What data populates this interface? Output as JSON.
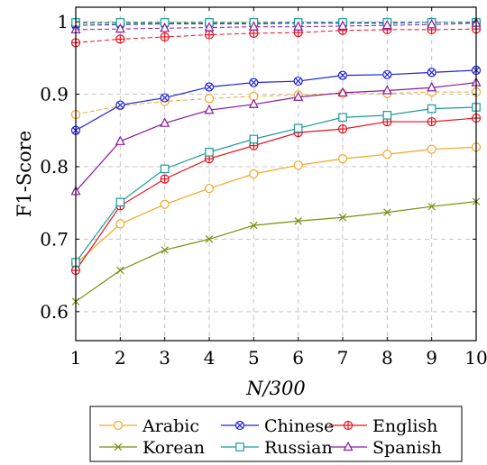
{
  "chart_data": {
    "type": "line",
    "title": "",
    "xlabel": "N/300",
    "ylabel": "F1-Score",
    "x": [
      1,
      2,
      3,
      4,
      5,
      6,
      7,
      8,
      9,
      10
    ],
    "x_ticks": [
      "1",
      "2",
      "3",
      "4",
      "5",
      "6",
      "7",
      "8",
      "9",
      "10"
    ],
    "y_ticks": [
      {
        "value": 0.6,
        "label": "0.6"
      },
      {
        "value": 0.7,
        "label": "0.7"
      },
      {
        "value": 0.8,
        "label": "0.8"
      },
      {
        "value": 0.9,
        "label": "0.9"
      },
      {
        "value": 1.0,
        "label": "1"
      }
    ],
    "xlim": [
      1,
      10
    ],
    "ylim": [
      0.56,
      1.02
    ],
    "grid": true,
    "legend_position": "bottom",
    "series": [
      {
        "name": "Arabic",
        "color": "#f5a623",
        "marker": "circle",
        "values": [
          0.666,
          0.721,
          0.748,
          0.77,
          0.79,
          0.802,
          0.811,
          0.817,
          0.824,
          0.827
        ]
      },
      {
        "name": "Chinese",
        "color": "#1f1fe0",
        "marker": "circle-x",
        "values": [
          0.85,
          0.885,
          0.895,
          0.91,
          0.916,
          0.918,
          0.926,
          0.927,
          0.93,
          0.933
        ]
      },
      {
        "name": "English",
        "color": "#e8101e",
        "marker": "circle-plus",
        "values": [
          0.657,
          0.746,
          0.783,
          0.811,
          0.829,
          0.847,
          0.852,
          0.862,
          0.862,
          0.867
        ]
      },
      {
        "name": "Korean",
        "color": "#7a8c10",
        "marker": "x",
        "values": [
          0.614,
          0.657,
          0.685,
          0.7,
          0.719,
          0.725,
          0.73,
          0.737,
          0.745,
          0.752
        ]
      },
      {
        "name": "Russian",
        "color": "#1a9a9a",
        "marker": "square",
        "values": [
          0.668,
          0.751,
          0.797,
          0.82,
          0.838,
          0.853,
          0.868,
          0.871,
          0.88,
          0.882
        ]
      },
      {
        "name": "Spanish",
        "color": "#8a1aa0",
        "marker": "triangle",
        "values": [
          0.766,
          0.835,
          0.86,
          0.878,
          0.886,
          0.896,
          0.902,
          0.905,
          0.909,
          0.916
        ]
      }
    ],
    "dashed_series": [
      {
        "color": "#f5a623",
        "marker": "circle",
        "values": [
          0.872,
          0.884,
          0.89,
          0.894,
          0.897,
          0.899,
          0.901,
          0.901,
          0.903,
          0.903
        ]
      },
      {
        "color": "#1f1fe0",
        "marker": "circle-x",
        "values": [
          0.995,
          0.996,
          0.997,
          0.997,
          0.997,
          0.998,
          0.998,
          0.998,
          0.999,
          0.999
        ]
      },
      {
        "color": "#e8101e",
        "marker": "circle-plus",
        "values": [
          0.971,
          0.976,
          0.979,
          0.982,
          0.984,
          0.985,
          0.988,
          0.989,
          0.989,
          0.99
        ]
      },
      {
        "color": "#7a8c10",
        "marker": "x",
        "values": [
          0.998,
          0.998,
          0.998,
          0.998,
          0.998,
          0.999,
          0.999,
          0.999,
          0.999,
          0.999
        ]
      },
      {
        "color": "#1a9a9a",
        "marker": "square",
        "values": [
          0.999,
          0.999,
          0.999,
          0.999,
          0.999,
          0.999,
          0.999,
          0.999,
          0.999,
          0.999
        ]
      },
      {
        "color": "#8a1aa0",
        "marker": "triangle",
        "values": [
          0.989,
          0.99,
          0.991,
          0.992,
          0.993,
          0.993,
          0.994,
          0.995,
          0.996,
          0.998
        ]
      }
    ]
  }
}
